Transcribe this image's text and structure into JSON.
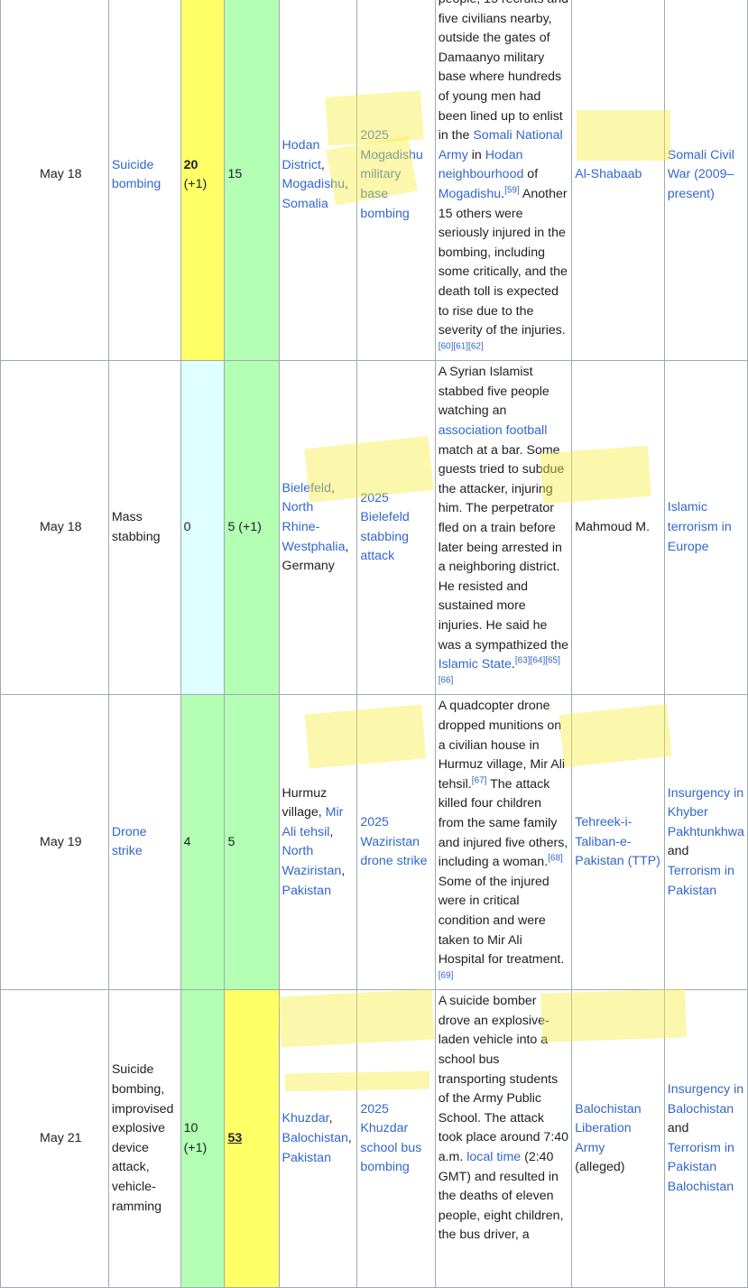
{
  "rows": [
    {
      "date": "May 18",
      "type": "Suicide bombing",
      "type_linked": true,
      "dead": "20",
      "dead_extra": "(+1)",
      "injured": "15",
      "location_parts": [
        "Hodan District",
        ", ",
        "Mogadishu",
        ", ",
        "Somalia"
      ],
      "article": "2025 Mogadishu military base bombing",
      "details_html": "people, 15 recruits and five civilians nearby, outside the gates of Damaanyo military base where hundreds of young men had been lined up to enlist in the <a>Somali National Army</a> in <a>Hodan neighbourhood</a> of <a>Mogadishu</a>.<sup>[59]</sup> Another 15 others were seriously injured in the bombing, including some critically, and the death toll is expected to rise due to the severity of the injuries.<sup>[60][61][62]</sup>",
      "perpetrator": "Al-Shabaab",
      "perpetrator_linked": true,
      "conflict": "Somali Civil War (2009–present)"
    },
    {
      "date": "May 18",
      "type": "Mass stabbing",
      "type_linked": false,
      "dead": "0",
      "injured": "5 (+1)",
      "location_parts": [
        "Bielefeld",
        ", ",
        "North Rhine-Westphalia",
        ", ",
        "Germany"
      ],
      "article": "2025 Bielefeld stabbing attack",
      "details_html": "A Syrian Islamist stabbed five people watching an <a>association football</a> match at a bar. Some guests tried to subdue the attacker, injuring him. The perpetrator fled on a train before later being arrested in a neighboring district. He resisted and sustained more injuries. He said he was a sympathized the <a>Islamic State</a>.<sup>[63][64][65][66]</sup>",
      "perpetrator": "Mahmoud M.",
      "perpetrator_linked": false,
      "conflict": "Islamic terrorism in Europe"
    },
    {
      "date": "May 19",
      "type": "Drone strike",
      "type_linked": true,
      "dead": "4",
      "injured": "5",
      "location_parts": [
        "Hurmuz village",
        ", ",
        "Mir Ali tehsil",
        ", ",
        "North Waziristan",
        ", ",
        "Pakistan"
      ],
      "article": "2025 Waziristan drone strike",
      "details_html": "A quadcopter drone dropped munitions on a civilian house in Hurmuz village, Mir Ali tehsil.<sup>[67]</sup> The attack killed four children from the same family and injured five others, including a woman.<sup>[68]</sup> Some of the injured were in critical condition and were taken to Mir Ali Hospital for treatment.<sup>[69]</sup>",
      "perpetrator": "Tehreek-i-Taliban-e-Pakistan (TTP)",
      "perpetrator_linked": true,
      "conflict_parts": [
        "Insurgency in Khyber Pakhtunkhwa",
        " and ",
        "Terrorism in Pakistan"
      ]
    },
    {
      "date": "May 21",
      "type": "Suicide bombing, improvised explosive device attack, vehicle-ramming",
      "type_linked": false,
      "dead": "10 (+1)",
      "injured": "53",
      "location_parts": [
        "Khuzdar",
        ", ",
        "Balochistan",
        ", ",
        "Pakistan"
      ],
      "article": "2025 Khuzdar school bus bombing",
      "details_html": "A suicide bomber drove an explosive-laden vehicle into a school bus transporting students of the Army Public School. The attack took place around 7:40 a.m. <a>local time</a> (2:40 GMT) and resulted in the deaths of eleven people, eight children, the bus driver, a",
      "perpetrator": "Balochistan Liberation Army",
      "perpetrator_note": "(alleged)",
      "conflict_parts": [
        "Insurgency in Balochistan",
        " and ",
        "Terrorism in Pakistan",
        "Balochistan"
      ]
    }
  ]
}
